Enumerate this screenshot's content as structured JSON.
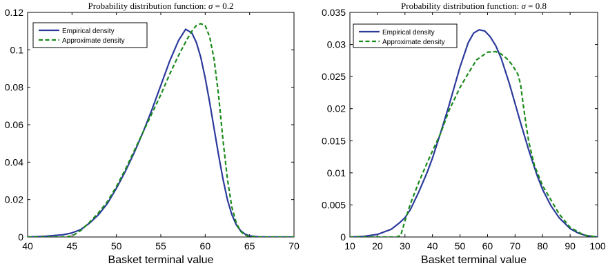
{
  "chart_data": [
    {
      "type": "line",
      "title_prefix": "Probability distribution function: ",
      "title_symbol": "σ",
      "title_value": " = 0.2",
      "xlabel": "Basket terminal value",
      "ylabel": "",
      "xlim": [
        40,
        70
      ],
      "ylim": [
        0,
        0.12
      ],
      "xticks": [
        40,
        45,
        50,
        55,
        60,
        65,
        70
      ],
      "yticks": [
        0,
        0.02,
        0.04,
        0.06,
        0.08,
        0.1,
        0.12
      ],
      "ytick_labels": [
        "0",
        "0.02",
        "0.04",
        "0.06",
        "0.08",
        "0.1",
        "0.12"
      ],
      "legend_position": "top-left",
      "series": [
        {
          "name": "Empirical density",
          "color": "#2b3a9a",
          "dash": "solid",
          "x": [
            40,
            42,
            44,
            45,
            46,
            47,
            48,
            49,
            50,
            51,
            52,
            53,
            54,
            55,
            56,
            57,
            57.8,
            58.5,
            59,
            59.5,
            60,
            60.5,
            61,
            61.5,
            62,
            62.5,
            63,
            63.5,
            64,
            64.5,
            65,
            66,
            67,
            68,
            70
          ],
          "y": [
            0,
            0.0004,
            0.0012,
            0.0022,
            0.004,
            0.0075,
            0.012,
            0.018,
            0.026,
            0.035,
            0.045,
            0.056,
            0.068,
            0.081,
            0.094,
            0.105,
            0.111,
            0.109,
            0.104,
            0.096,
            0.085,
            0.072,
            0.058,
            0.044,
            0.031,
            0.02,
            0.012,
            0.0065,
            0.0033,
            0.0015,
            0.0006,
            0.0001,
            0,
            0,
            0
          ]
        },
        {
          "name": "Approximate density",
          "color": "#1a8a1a",
          "dash": "dashed",
          "x": [
            40,
            42,
            44,
            45,
            46,
            47,
            48,
            49,
            50,
            51,
            52,
            53,
            54,
            55,
            56,
            57,
            58,
            58.5,
            59,
            59.5,
            60,
            60.5,
            61,
            61.5,
            62,
            62.5,
            63,
            63.5,
            64,
            64.5,
            65,
            66,
            70
          ],
          "y": [
            0,
            0,
            0,
            0.0005,
            0.0035,
            0.008,
            0.013,
            0.019,
            0.027,
            0.036,
            0.046,
            0.056,
            0.066,
            0.076,
            0.087,
            0.097,
            0.106,
            0.11,
            0.113,
            0.114,
            0.113,
            0.107,
            0.095,
            0.076,
            0.052,
            0.031,
            0.016,
            0.0075,
            0.003,
            0.001,
            0.0003,
            0,
            0
          ]
        }
      ]
    },
    {
      "type": "line",
      "title_prefix": "Probability distribution function: ",
      "title_symbol": "σ",
      "title_value": " = 0.8",
      "xlabel": "Basket terminal value",
      "ylabel": "",
      "xlim": [
        10,
        100
      ],
      "ylim": [
        0,
        0.035
      ],
      "xticks": [
        10,
        20,
        30,
        40,
        50,
        60,
        70,
        80,
        90,
        100
      ],
      "yticks": [
        0,
        0.005,
        0.01,
        0.015,
        0.02,
        0.025,
        0.03,
        0.035
      ],
      "ytick_labels": [
        "0",
        "0.005",
        "0.01",
        "0.015",
        "0.02",
        "0.025",
        "0.03",
        "0.035"
      ],
      "legend_position": "top-left",
      "series": [
        {
          "name": "Empirical density",
          "color": "#2b3a9a",
          "dash": "solid",
          "x": [
            10,
            15,
            20,
            25,
            28,
            30,
            32,
            35,
            38,
            40,
            43,
            46,
            50,
            53,
            55,
            57,
            59,
            61,
            63,
            65,
            68,
            70,
            72,
            75,
            78,
            80,
            83,
            86,
            90,
            93,
            96,
            100
          ],
          "y": [
            0,
            0.0001,
            0.0004,
            0.0012,
            0.0022,
            0.003,
            0.0043,
            0.007,
            0.01,
            0.0123,
            0.0163,
            0.0205,
            0.0265,
            0.0303,
            0.0318,
            0.0323,
            0.0321,
            0.0312,
            0.0298,
            0.0278,
            0.0238,
            0.0208,
            0.0178,
            0.0135,
            0.0096,
            0.0074,
            0.0049,
            0.003,
            0.0013,
            0.0006,
            0.0002,
            0
          ]
        },
        {
          "name": "Approximate density",
          "color": "#1a8a1a",
          "dash": "dashed",
          "x": [
            10,
            20,
            27,
            28.5,
            30,
            32,
            35,
            38,
            40,
            43,
            46,
            50,
            53,
            56,
            60,
            63,
            65,
            67,
            69,
            71,
            72,
            73,
            74,
            75,
            77,
            80,
            83,
            86,
            90,
            95,
            100
          ],
          "y": [
            0,
            0,
            0,
            0.0003,
            0.0025,
            0.0052,
            0.0085,
            0.0115,
            0.0134,
            0.0162,
            0.0197,
            0.0233,
            0.0255,
            0.0276,
            0.0288,
            0.0289,
            0.0285,
            0.0278,
            0.0268,
            0.0254,
            0.0238,
            0.0205,
            0.0175,
            0.0148,
            0.0112,
            0.008,
            0.0058,
            0.0036,
            0.0015,
            0.0003,
            0
          ]
        }
      ]
    }
  ]
}
